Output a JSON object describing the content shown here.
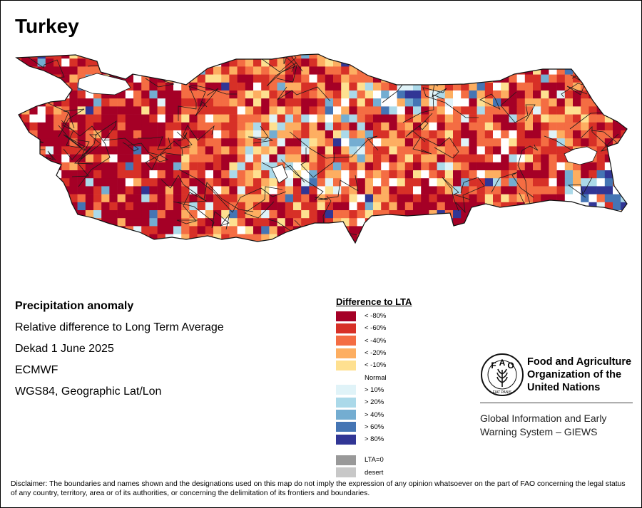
{
  "title": "Turkey",
  "info": {
    "heading": "Precipitation anomaly",
    "lines": [
      "Relative difference to Long Term Average",
      "Dekad 1 June 2025",
      "ECMWF",
      "WGS84, Geographic Lat/Lon"
    ]
  },
  "legend": {
    "title": "Difference to LTA",
    "classes": [
      {
        "label": "< -80%",
        "color": "#a50026"
      },
      {
        "label": "< -60%",
        "color": "#d73027"
      },
      {
        "label": "< -40%",
        "color": "#f46d43"
      },
      {
        "label": "< -20%",
        "color": "#fdae61"
      },
      {
        "label": "< -10%",
        "color": "#fee090"
      },
      {
        "label": "Normal",
        "color": "#ffffff"
      },
      {
        "label": "> 10%",
        "color": "#e0f3f8"
      },
      {
        "label": "> 20%",
        "color": "#abd9e9"
      },
      {
        "label": "> 40%",
        "color": "#74add1"
      },
      {
        "label": "> 60%",
        "color": "#4575b4"
      },
      {
        "label": "> 80%",
        "color": "#313695"
      }
    ],
    "extra": [
      {
        "label": "LTA=0",
        "color": "#999999"
      },
      {
        "label": "desert",
        "color": "#c8c8c8"
      }
    ]
  },
  "fao": {
    "logo_letters": [
      "F",
      "A",
      "O"
    ],
    "logo_motto": "FIAT PANIS",
    "name_lines": [
      "Food and Agriculture",
      "Organization of the",
      "United Nations"
    ]
  },
  "giews": {
    "lines": [
      "Global Information and Early",
      "Warning System – GIEWS"
    ]
  },
  "disclaimer": "Disclaimer: The boundaries and names shown and the designations used on this map do not imply the expression of any opinion whatsoever on the part of FAO concerning the legal status of any country, territory, area or of its authorities, or concerning the delimitation of its frontiers and boundaries."
}
